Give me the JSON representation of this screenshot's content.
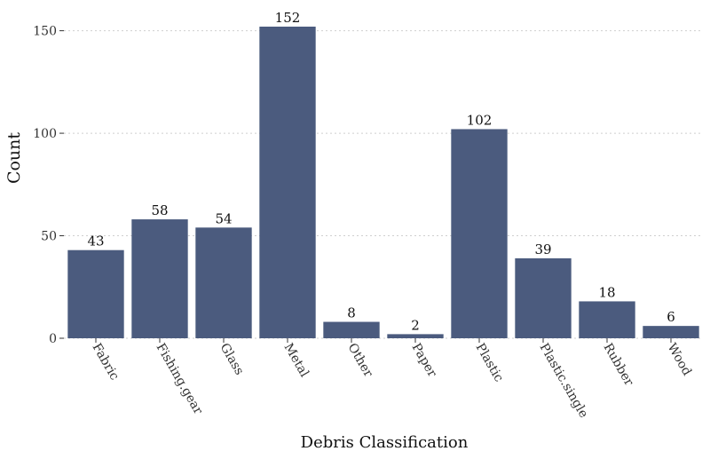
{
  "chart_data": {
    "type": "bar",
    "title": "",
    "xlabel": "Debris Classification",
    "ylabel": "Count",
    "categories": [
      "Fabric",
      "Fishing.gear",
      "Glass",
      "Metal",
      "Other",
      "Paper",
      "Plastic",
      "Plastic.single",
      "Rubber",
      "Wood"
    ],
    "values": [
      43,
      58,
      54,
      152,
      8,
      2,
      102,
      39,
      18,
      6
    ],
    "ylim": [
      0,
      152
    ],
    "yticks": [
      0,
      50,
      100,
      150
    ],
    "grid": "horizontal-dotted",
    "bar_color": "#4b5b7e"
  }
}
